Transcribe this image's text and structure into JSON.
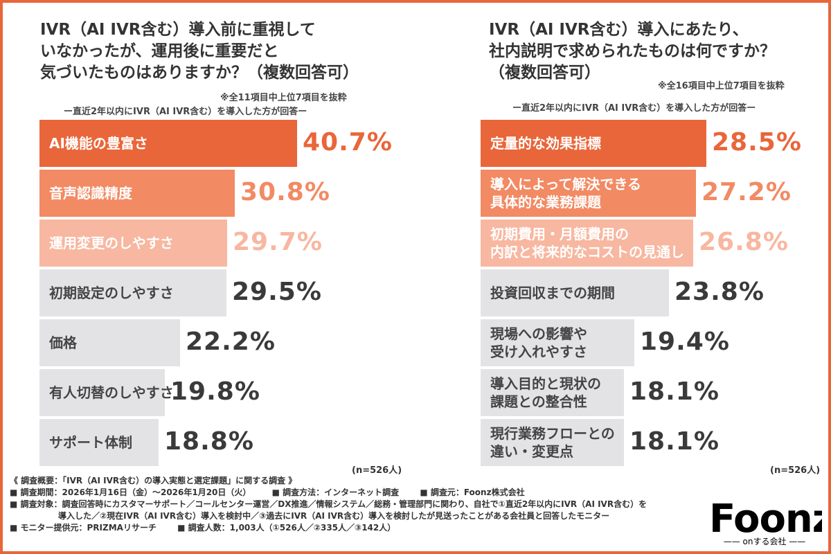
{
  "colors": {
    "orange_dark": "#e9663a",
    "orange_mid": "#f28a63",
    "orange_light": "#f8b7a0",
    "gray": "#e3e3e5",
    "navy": "#1f2b6b"
  },
  "left": {
    "title": "IVR（AI IVR含む）導入前に重視して\nいなかったが、運用後に重要だと\n気づいたものはありますか？（複数回答可）",
    "note": "※全11項目中上位7項目を抜粋",
    "sub": "ー直近2年以内にIVR（AI IVR含む）を導入した方が回答ー",
    "n": "(n=526人)"
  },
  "right": {
    "title": "IVR（AI IVR含む）導入にあたり、\n社内説明で求められたものは何ですか？\n（複数回答可）",
    "note": "※全16項目中上位7項目を抜粋",
    "sub": "ー直近2年以内にIVR（AI IVR含む）を導入した方が回答ー",
    "n": "(n=526人)"
  },
  "chart_data": [
    {
      "type": "bar",
      "orientation": "horizontal",
      "categories": [
        "AI機能の豊富さ",
        "音声認識精度",
        "運用変更のしやすさ",
        "初期設定のしやすさ",
        "価格",
        "有人切替のしやすさ",
        "サポート体制"
      ],
      "values": [
        40.7,
        30.8,
        29.7,
        29.5,
        22.2,
        19.8,
        18.8
      ],
      "value_labels": [
        "40.7%",
        "30.8%",
        "29.7%",
        "29.5%",
        "22.2%",
        "19.8%",
        "18.8%"
      ],
      "unit": "%"
    },
    {
      "type": "bar",
      "orientation": "horizontal",
      "categories": [
        "定量的な効果指標",
        "導入によって解決できる\n具体的な業務課題",
        "初期費用・月額費用の\n内訳と将来的なコストの見通し",
        "投資回収までの期間",
        "現場への影響や\n受け入れやすさ",
        "導入目的と現状の\n課題との整合性",
        "現行業務フローとの\n違い・変更点"
      ],
      "values": [
        28.5,
        27.2,
        26.8,
        23.8,
        19.4,
        18.1,
        18.1
      ],
      "value_labels": [
        "28.5%",
        "27.2%",
        "26.8%",
        "23.8%",
        "19.4%",
        "18.1%",
        "18.1%"
      ],
      "unit": "%"
    }
  ],
  "footer": {
    "line1": "《 調査概要：「IVR（AI IVR含む）の導入実態と選定課題」に関する調査 》",
    "period": "■ 調査期間：2026年1月16日（金）〜2026年1月20日（火）",
    "method": "■ 調査方法：インターネット調査",
    "source": "■ 調査元：Foonz株式会社",
    "target1": "■ 調査対象：調査回答時にカスタマーサポート／コールセンター運営／DX推進／情報システム／総務・管理部門に関わり、自社で①直近2年以内にIVR（AI IVR含む）を",
    "target2": "導入した／②現在IVR（AI IVR含む）導入を検討中／③過去にIVR（AI IVR含む）導入を検討したが見送ったことがある会社員と回答したモニター",
    "monitor": "■ モニター提供元：PRIZMAリサーチ",
    "count": "■ 調査人数：1,003人（①526人／②335人／③142人）"
  },
  "logo": {
    "word": "Foonz",
    "tagline": "—— onする会社 ——"
  }
}
